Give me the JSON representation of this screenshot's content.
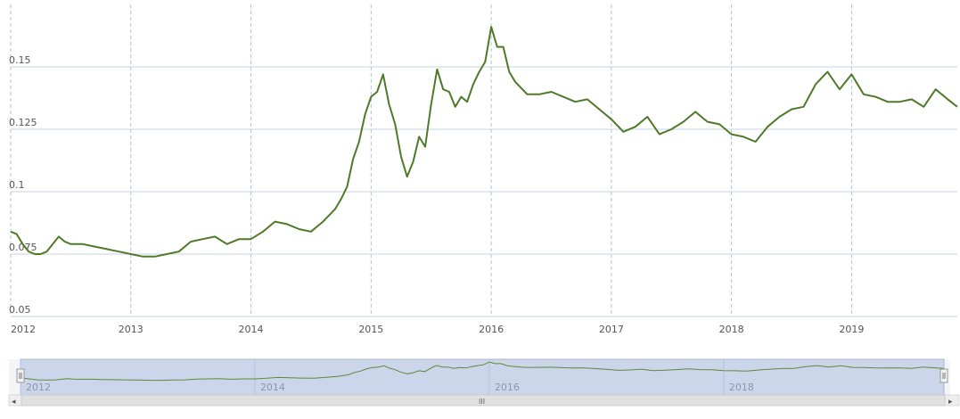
{
  "chart_data": {
    "type": "line",
    "title": "",
    "xlabel": "",
    "ylabel": "",
    "x_ticks": [
      "2012",
      "2013",
      "2014",
      "2015",
      "2016",
      "2017",
      "2018",
      "2019"
    ],
    "y_ticks": [
      "0.05",
      "0.075",
      "0.1",
      "0.125",
      "0.15"
    ],
    "ylim": [
      0.05,
      0.175
    ],
    "xlim": [
      2012.0,
      2019.88
    ],
    "grid": true,
    "line_color": "#4f7a28",
    "navigator": {
      "labels": [
        "2012",
        "2014",
        "2016",
        "2018"
      ],
      "scrollbar_grip": "III",
      "left_arrow": "◂",
      "right_arrow": "▸",
      "selected_range": [
        2012.0,
        2019.88
      ]
    },
    "series": [
      {
        "x": [
          2012.0,
          2012.05,
          2012.1,
          2012.15,
          2012.2,
          2012.25,
          2012.3,
          2012.35,
          2012.4,
          2012.45,
          2012.5,
          2012.6,
          2012.7,
          2012.8,
          2012.9,
          2013.0,
          2013.1,
          2013.2,
          2013.3,
          2013.4,
          2013.5,
          2013.6,
          2013.7,
          2013.8,
          2013.9,
          2014.0,
          2014.1,
          2014.2,
          2014.3,
          2014.4,
          2014.5,
          2014.6,
          2014.7,
          2014.75,
          2014.8,
          2014.85,
          2014.9,
          2014.95,
          2015.0,
          2015.05,
          2015.1,
          2015.15,
          2015.2,
          2015.25,
          2015.3,
          2015.35,
          2015.4,
          2015.45,
          2015.5,
          2015.55,
          2015.6,
          2015.65,
          2015.7,
          2015.75,
          2015.8,
          2015.85,
          2015.9,
          2015.95,
          2016.0,
          2016.05,
          2016.1,
          2016.15,
          2016.2,
          2016.3,
          2016.4,
          2016.5,
          2016.6,
          2016.7,
          2016.8,
          2016.9,
          2017.0,
          2017.1,
          2017.2,
          2017.3,
          2017.4,
          2017.5,
          2017.6,
          2017.7,
          2017.8,
          2017.9,
          2018.0,
          2018.1,
          2018.2,
          2018.3,
          2018.4,
          2018.5,
          2018.6,
          2018.7,
          2018.8,
          2018.9,
          2019.0,
          2019.1,
          2019.2,
          2019.3,
          2019.4,
          2019.5,
          2019.6,
          2019.7,
          2019.8,
          2019.88
        ],
        "y": [
          0.084,
          0.083,
          0.079,
          0.076,
          0.075,
          0.075,
          0.076,
          0.079,
          0.082,
          0.08,
          0.079,
          0.079,
          0.078,
          0.077,
          0.076,
          0.075,
          0.074,
          0.074,
          0.075,
          0.076,
          0.08,
          0.081,
          0.082,
          0.079,
          0.081,
          0.081,
          0.084,
          0.088,
          0.087,
          0.085,
          0.084,
          0.088,
          0.093,
          0.097,
          0.102,
          0.113,
          0.12,
          0.131,
          0.138,
          0.14,
          0.147,
          0.135,
          0.127,
          0.114,
          0.106,
          0.112,
          0.122,
          0.118,
          0.135,
          0.149,
          0.141,
          0.14,
          0.134,
          0.138,
          0.136,
          0.143,
          0.148,
          0.152,
          0.166,
          0.158,
          0.158,
          0.148,
          0.144,
          0.139,
          0.139,
          0.14,
          0.138,
          0.136,
          0.137,
          0.133,
          0.129,
          0.124,
          0.126,
          0.13,
          0.123,
          0.125,
          0.128,
          0.132,
          0.128,
          0.127,
          0.123,
          0.122,
          0.12,
          0.126,
          0.13,
          0.133,
          0.134,
          0.143,
          0.148,
          0.141,
          0.147,
          0.139,
          0.138,
          0.136,
          0.136,
          0.137,
          0.134,
          0.141,
          0.137,
          0.134
        ]
      }
    ]
  }
}
